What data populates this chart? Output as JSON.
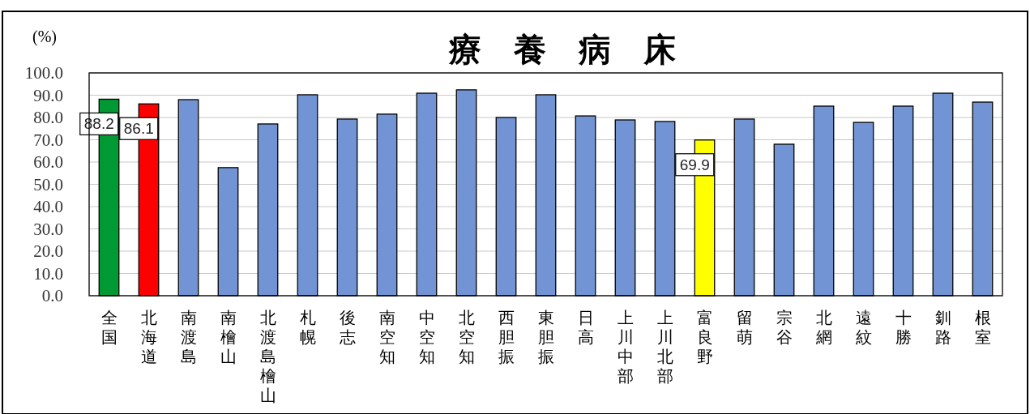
{
  "chart_data": {
    "type": "bar",
    "title": "療　養　病　床",
    "ylabel": "(%)",
    "categories": [
      "全国",
      "北海道",
      "南渡島",
      "南檜山",
      "北渡島檜山",
      "札幌",
      "後志",
      "南空知",
      "中空知",
      "北空知",
      "西胆振",
      "東胆振",
      "日高",
      "上川中部",
      "上川北部",
      "富良野",
      "留萌",
      "宗谷",
      "北網",
      "遠紋",
      "十勝",
      "釧路",
      "根室"
    ],
    "values": [
      88.2,
      86.1,
      88.0,
      57.5,
      77.1,
      90.2,
      79.3,
      81.5,
      90.9,
      92.4,
      80.0,
      90.2,
      80.7,
      78.9,
      78.2,
      69.9,
      79.3,
      68.0,
      85.1,
      77.8,
      85.1,
      90.9,
      86.9
    ],
    "value_labels": [
      "88.2",
      "86.1",
      null,
      null,
      null,
      null,
      null,
      null,
      null,
      null,
      null,
      null,
      null,
      null,
      null,
      "69.9",
      null,
      null,
      null,
      null,
      null,
      null,
      null
    ],
    "colors": [
      "#009933",
      "#ff0000",
      "#7294d4",
      "#7294d4",
      "#7294d4",
      "#7294d4",
      "#7294d4",
      "#7294d4",
      "#7294d4",
      "#7294d4",
      "#7294d4",
      "#7294d4",
      "#7294d4",
      "#7294d4",
      "#7294d4",
      "#ffff00",
      "#7294d4",
      "#7294d4",
      "#7294d4",
      "#7294d4",
      "#7294d4",
      "#7294d4",
      "#7294d4"
    ],
    "ylim": [
      0,
      100
    ],
    "yticks": [
      {
        "value": 0,
        "label": "0.0"
      },
      {
        "value": 10,
        "label": "10.0"
      },
      {
        "value": 20,
        "label": "20.0"
      },
      {
        "value": 30,
        "label": "30.0"
      },
      {
        "value": 40,
        "label": "40.0"
      },
      {
        "value": 50,
        "label": "50.0"
      },
      {
        "value": 60,
        "label": "60.0"
      },
      {
        "value": 70,
        "label": "70.0"
      },
      {
        "value": 80,
        "label": "80.0"
      },
      {
        "value": 90,
        "label": "90.0"
      },
      {
        "value": 100,
        "label": "100.0"
      }
    ],
    "grid": "y"
  }
}
